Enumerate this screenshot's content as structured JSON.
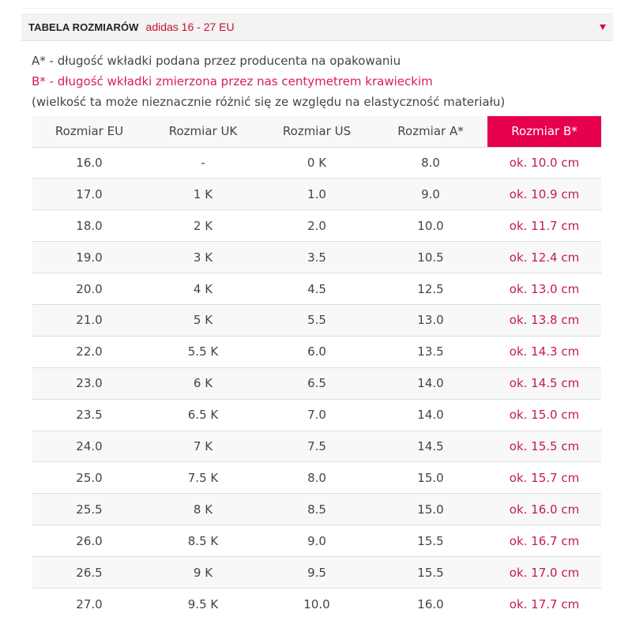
{
  "panel": {
    "title": "TABELA ROZMIARÓW",
    "subtitle": "adidas 16 - 27 EU",
    "toggle_icon": "triangle-down",
    "accent_color": "#e6004e"
  },
  "notes": {
    "a": "A* - długość wkładki podana przez producenta na opakowaniu",
    "b": "B* - długość wkładki zmierzona przez nas centymetrem krawieckim",
    "c": "(wielkość ta może nieznacznie różnić się ze względu na elastyczność materiału)"
  },
  "table": {
    "headers": [
      "Rozmiar EU",
      "Rozmiar UK",
      "Rozmiar US",
      "Rozmiar A*",
      "Rozmiar B*"
    ],
    "rows": [
      [
        "16.0",
        "-",
        "0 K",
        "8.0",
        "ok. 10.0 cm"
      ],
      [
        "17.0",
        "1 K",
        "1.0",
        "9.0",
        "ok. 10.9 cm"
      ],
      [
        "18.0",
        "2 K",
        "2.0",
        "10.0",
        "ok. 11.7 cm"
      ],
      [
        "19.0",
        "3 K",
        "3.5",
        "10.5",
        "ok. 12.4 cm"
      ],
      [
        "20.0",
        "4 K",
        "4.5",
        "12.5",
        "ok. 13.0 cm"
      ],
      [
        "21.0",
        "5 K",
        "5.5",
        "13.0",
        "ok. 13.8 cm"
      ],
      [
        "22.0",
        "5.5 K",
        "6.0",
        "13.5",
        "ok. 14.3 cm"
      ],
      [
        "23.0",
        "6 K",
        "6.5",
        "14.0",
        "ok. 14.5 cm"
      ],
      [
        "23.5",
        "6.5 K",
        "7.0",
        "14.0",
        "ok. 15.0 cm"
      ],
      [
        "24.0",
        "7 K",
        "7.5",
        "14.5",
        "ok. 15.5 cm"
      ],
      [
        "25.0",
        "7.5 K",
        "8.0",
        "15.0",
        "ok. 15.7 cm"
      ],
      [
        "25.5",
        "8 K",
        "8.5",
        "15.0",
        "ok. 16.0 cm"
      ],
      [
        "26.0",
        "8.5 K",
        "9.0",
        "15.5",
        "ok. 16.7 cm"
      ],
      [
        "26.5",
        "9 K",
        "9.5",
        "15.5",
        "ok. 17.0 cm"
      ],
      [
        "27.0",
        "9.5 K",
        "10.0",
        "16.0",
        "ok. 17.7 cm"
      ]
    ]
  }
}
